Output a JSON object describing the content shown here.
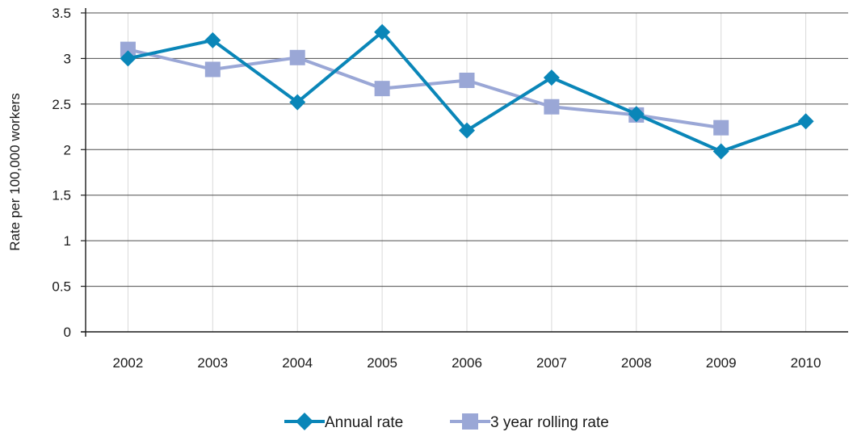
{
  "chart_data": {
    "type": "line",
    "title": "",
    "xlabel": "",
    "ylabel": "Rate per 100,000 workers",
    "categories": [
      "2002",
      "2003",
      "2004",
      "2005",
      "2006",
      "2007",
      "2008",
      "2009",
      "2010"
    ],
    "ylim": [
      0,
      3.5
    ],
    "yticks": [
      "0",
      "0.5",
      "1",
      "1.5",
      "2",
      "2.5",
      "3",
      "3.5"
    ],
    "grid": {
      "horizontal": true,
      "vertical": true
    },
    "legend_position": "bottom",
    "series": [
      {
        "name": "Annual rate",
        "color": "#0a86b8",
        "marker": "diamond",
        "values": [
          3.0,
          3.2,
          2.52,
          3.29,
          2.21,
          2.79,
          2.39,
          1.98,
          2.31
        ]
      },
      {
        "name": "3 year rolling rate",
        "color": "#9aa7d6",
        "marker": "square",
        "values": [
          3.1,
          2.88,
          3.01,
          2.67,
          2.76,
          2.47,
          2.38,
          2.24,
          null
        ]
      }
    ]
  }
}
